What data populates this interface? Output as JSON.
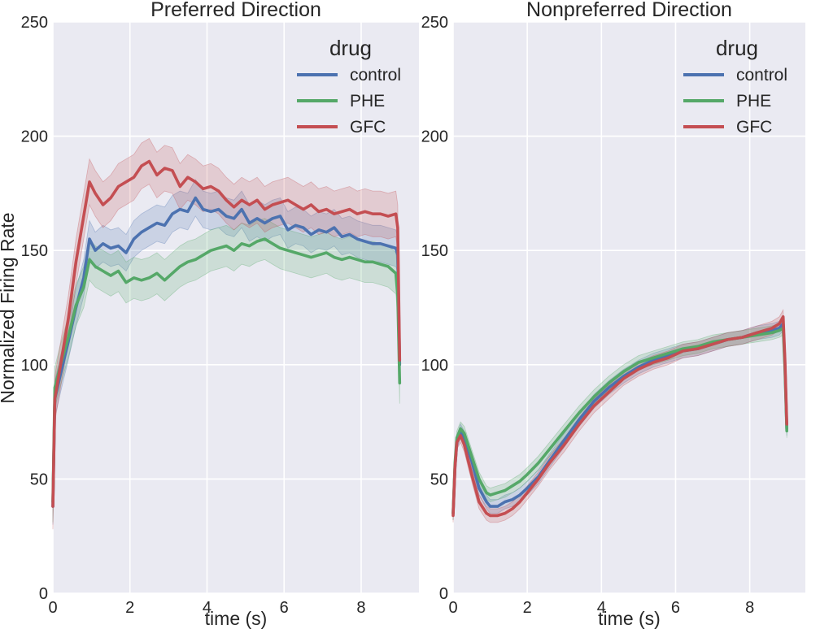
{
  "colors": {
    "plot_bg": "#EAEAF2",
    "grid": "#FFFFFF",
    "control": "#4C72B0",
    "PHE": "#55A868",
    "GFC": "#C44E52"
  },
  "ylabel": "Normalized Firing Rate",
  "chart_data": [
    {
      "type": "line",
      "title": "Preferred Direction",
      "xlabel": "time (s)",
      "ylabel": "Normalized Firing Rate",
      "xlim": [
        0,
        9.5
      ],
      "ylim": [
        0,
        250
      ],
      "xticks": [
        0,
        2,
        4,
        6,
        8
      ],
      "yticks": [
        0,
        50,
        100,
        150,
        200,
        250
      ],
      "grid": true,
      "legend": {
        "title": "drug",
        "placement": "top-right"
      },
      "series": [
        {
          "name": "control",
          "x": [
            0,
            0.05,
            0.2,
            0.4,
            0.6,
            0.8,
            0.95,
            1.1,
            1.3,
            1.5,
            1.7,
            1.9,
            2.1,
            2.3,
            2.5,
            2.7,
            2.9,
            3.1,
            3.3,
            3.5,
            3.7,
            3.9,
            4.1,
            4.3,
            4.5,
            4.7,
            4.9,
            5.1,
            5.3,
            5.5,
            5.7,
            5.9,
            6.1,
            6.3,
            6.5,
            6.7,
            6.9,
            7.1,
            7.3,
            7.5,
            7.7,
            7.9,
            8.1,
            8.3,
            8.5,
            8.7,
            8.9,
            8.95,
            9.0
          ],
          "values": [
            38,
            85,
            96,
            110,
            125,
            138,
            155,
            150,
            153,
            151,
            152,
            149,
            155,
            158,
            160,
            162,
            161,
            166,
            168,
            167,
            173,
            168,
            167,
            168,
            165,
            164,
            168,
            162,
            164,
            162,
            164,
            165,
            159,
            161,
            160,
            157,
            159,
            158,
            160,
            156,
            157,
            155,
            154,
            153,
            153,
            152,
            151,
            148,
            100
          ],
          "band": 8
        },
        {
          "name": "PHE",
          "x": [
            0,
            0.05,
            0.2,
            0.4,
            0.6,
            0.8,
            0.95,
            1.1,
            1.3,
            1.5,
            1.7,
            1.9,
            2.1,
            2.3,
            2.5,
            2.7,
            2.9,
            3.1,
            3.3,
            3.5,
            3.7,
            3.9,
            4.1,
            4.3,
            4.5,
            4.7,
            4.9,
            5.1,
            5.3,
            5.5,
            5.7,
            5.9,
            6.1,
            6.3,
            6.5,
            6.7,
            6.9,
            7.1,
            7.3,
            7.5,
            7.7,
            7.9,
            8.1,
            8.3,
            8.5,
            8.7,
            8.9,
            8.95,
            9.0
          ],
          "values": [
            40,
            90,
            100,
            112,
            126,
            134,
            146,
            143,
            141,
            139,
            141,
            136,
            138,
            137,
            138,
            140,
            137,
            140,
            143,
            145,
            146,
            148,
            150,
            151,
            152,
            150,
            153,
            152,
            154,
            155,
            153,
            151,
            150,
            149,
            148,
            147,
            148,
            149,
            147,
            146,
            147,
            146,
            145,
            145,
            144,
            143,
            140,
            130,
            92
          ],
          "band": 9
        },
        {
          "name": "GFC",
          "x": [
            0,
            0.05,
            0.2,
            0.4,
            0.6,
            0.8,
            0.95,
            1.1,
            1.3,
            1.5,
            1.7,
            1.9,
            2.1,
            2.3,
            2.5,
            2.7,
            2.9,
            3.1,
            3.3,
            3.5,
            3.7,
            3.9,
            4.1,
            4.3,
            4.5,
            4.7,
            4.9,
            5.1,
            5.3,
            5.5,
            5.7,
            5.9,
            6.1,
            6.3,
            6.5,
            6.7,
            6.9,
            7.1,
            7.3,
            7.5,
            7.7,
            7.9,
            8.1,
            8.3,
            8.5,
            8.7,
            8.9,
            8.95,
            9.0
          ],
          "values": [
            38,
            85,
            100,
            120,
            145,
            165,
            180,
            175,
            170,
            173,
            178,
            180,
            182,
            187,
            189,
            183,
            186,
            185,
            178,
            182,
            180,
            177,
            178,
            176,
            172,
            169,
            172,
            170,
            172,
            168,
            170,
            171,
            172,
            170,
            168,
            170,
            167,
            168,
            166,
            167,
            168,
            166,
            167,
            166,
            166,
            165,
            166,
            160,
            102
          ],
          "band": 10
        }
      ]
    },
    {
      "type": "line",
      "title": "Nonpreferred Direction",
      "xlabel": "time (s)",
      "ylabel": "",
      "xlim": [
        0,
        9.5
      ],
      "ylim": [
        0,
        250
      ],
      "xticks": [
        0,
        2,
        4,
        6,
        8
      ],
      "yticks": [
        0,
        50,
        100,
        150,
        200,
        250
      ],
      "grid": true,
      "legend": {
        "title": "drug",
        "placement": "top-right"
      },
      "series": [
        {
          "name": "control",
          "x": [
            0,
            0.05,
            0.1,
            0.2,
            0.3,
            0.5,
            0.7,
            0.9,
            1.0,
            1.2,
            1.4,
            1.6,
            1.8,
            2.0,
            2.3,
            2.6,
            3.0,
            3.4,
            3.8,
            4.2,
            4.6,
            5.0,
            5.4,
            5.8,
            6.2,
            6.6,
            7.0,
            7.4,
            7.8,
            8.2,
            8.6,
            8.8,
            8.9,
            8.95,
            9.0
          ],
          "values": [
            35,
            55,
            66,
            71,
            68,
            58,
            46,
            40,
            38,
            38,
            40,
            41,
            43,
            46,
            51,
            58,
            67,
            76,
            84,
            90,
            95,
            99,
            102,
            104,
            106,
            107,
            109,
            111,
            112,
            114,
            115,
            116,
            118,
            100,
            72
          ],
          "band": 3
        },
        {
          "name": "PHE",
          "x": [
            0,
            0.05,
            0.1,
            0.2,
            0.3,
            0.5,
            0.7,
            0.9,
            1.0,
            1.2,
            1.4,
            1.6,
            1.8,
            2.0,
            2.3,
            2.6,
            3.0,
            3.4,
            3.8,
            4.2,
            4.6,
            5.0,
            5.4,
            5.8,
            6.2,
            6.6,
            7.0,
            7.4,
            7.8,
            8.2,
            8.6,
            8.8,
            8.9,
            8.95,
            9.0
          ],
          "values": [
            35,
            57,
            68,
            72,
            70,
            60,
            50,
            44,
            43,
            44,
            45,
            47,
            49,
            52,
            57,
            63,
            71,
            79,
            86,
            92,
            97,
            101,
            103,
            105,
            107,
            108,
            110,
            111,
            112,
            113,
            114,
            115,
            116,
            98,
            71
          ],
          "band": 3
        },
        {
          "name": "GFC",
          "x": [
            0,
            0.05,
            0.1,
            0.2,
            0.3,
            0.5,
            0.7,
            0.9,
            1.0,
            1.2,
            1.4,
            1.6,
            1.8,
            2.0,
            2.3,
            2.6,
            3.0,
            3.4,
            3.8,
            4.2,
            4.6,
            5.0,
            5.4,
            5.8,
            6.2,
            6.6,
            7.0,
            7.4,
            7.8,
            8.2,
            8.6,
            8.8,
            8.9,
            8.95,
            9.0
          ],
          "values": [
            34,
            55,
            66,
            69,
            65,
            52,
            40,
            35,
            34,
            34,
            35,
            37,
            40,
            44,
            50,
            57,
            65,
            74,
            82,
            88,
            94,
            98,
            101,
            103,
            106,
            107,
            109,
            111,
            112,
            114,
            116,
            118,
            121,
            102,
            74
          ],
          "band": 3
        }
      ]
    }
  ]
}
